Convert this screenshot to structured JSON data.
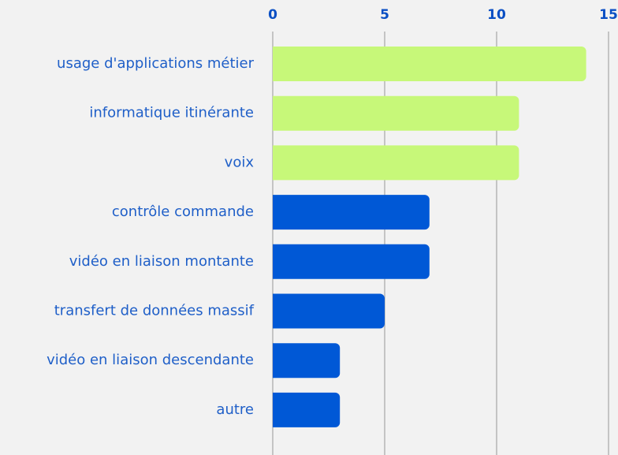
{
  "chart_data": {
    "type": "bar",
    "orientation": "horizontal",
    "categories": [
      "usage d'applications métier",
      "informatique itinérante",
      "voix",
      "contrôle commande",
      "vidéo en liaison montante",
      "transfert de données massif",
      "vidéo en liaison descendante",
      "autre"
    ],
    "values": [
      14,
      11,
      11,
      7,
      7,
      5,
      3,
      3
    ],
    "colors": [
      "#c7f879",
      "#c7f879",
      "#c7f879",
      "#0058d6",
      "#0058d6",
      "#0058d6",
      "#0058d6",
      "#0058d6"
    ],
    "xlim": [
      0,
      15
    ],
    "xticks": [
      0,
      5,
      10,
      15
    ],
    "grid": true
  }
}
